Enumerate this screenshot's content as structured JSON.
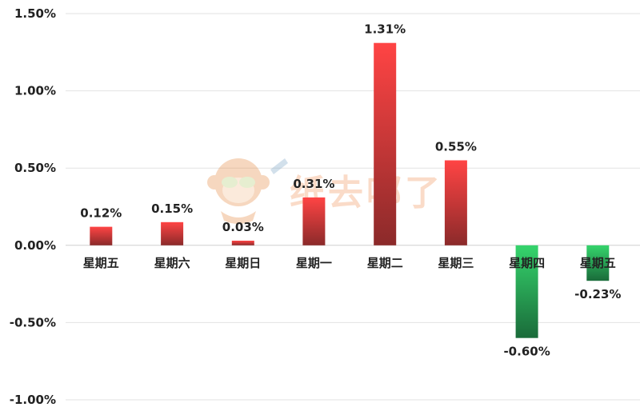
{
  "chart_data": {
    "type": "bar",
    "title": "",
    "xlabel": "",
    "ylabel": "",
    "categories": [
      "星期五",
      "星期六",
      "星期日",
      "星期一",
      "星期二",
      "星期三",
      "星期四",
      "星期五"
    ],
    "values": [
      0.12,
      0.15,
      0.03,
      0.31,
      1.31,
      0.55,
      -0.6,
      -0.23
    ],
    "value_labels": [
      "0.12%",
      "0.15%",
      "0.03%",
      "0.31%",
      "1.31%",
      "0.55%",
      "-0.60%",
      "-0.23%"
    ],
    "unit": "%",
    "ylim": [
      -1.0,
      1.5
    ],
    "yticks": [
      1.5,
      1.0,
      0.5,
      0.0,
      -0.5,
      -1.0
    ],
    "ytick_labels": [
      "1.50%",
      "1.00%",
      "0.50%",
      "0.00%",
      "-0.50%",
      "-1.00%"
    ],
    "grid": true,
    "legend": "none",
    "colors": {
      "positive_top": "#ff4444",
      "positive_bottom": "#8b2a2a",
      "negative_top": "#35d46c",
      "negative_bottom": "#1a6b3a"
    }
  },
  "watermark": {
    "text": "纸去哪了",
    "icon": "monkey-mascot-icon"
  }
}
